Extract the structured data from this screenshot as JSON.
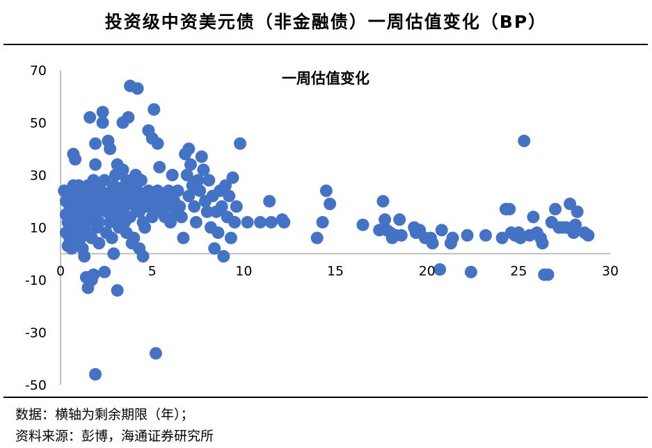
{
  "header": {
    "title": "投资级中资美元债（非金融债）一周估值变化（BP）"
  },
  "footer": {
    "note": "数据：横轴为剩余期限（年）；",
    "source": "资料来源：彭博，海通证券研究所"
  },
  "colors": {
    "marker": "#4472c4",
    "axis": "#bfbfbf",
    "text": "#000000"
  },
  "chart_data": {
    "type": "scatter",
    "title": "一周估值变化",
    "xlabel": "",
    "ylabel": "",
    "xlim": [
      0,
      30
    ],
    "ylim": [
      -50,
      70
    ],
    "xticks": [
      0,
      5,
      10,
      15,
      20,
      25,
      30
    ],
    "yticks": [
      70,
      50,
      30,
      10,
      -10,
      -30,
      -50
    ],
    "grid": false,
    "legend": "none",
    "series": [
      {
        "points": [
          [
            0.2,
            24
          ],
          [
            0.3,
            20
          ],
          [
            0.3,
            15
          ],
          [
            0.3,
            8
          ],
          [
            0.4,
            3
          ],
          [
            0.4,
            12
          ],
          [
            0.5,
            24
          ],
          [
            0.5,
            18
          ],
          [
            0.5,
            6
          ],
          [
            0.6,
            22
          ],
          [
            0.6,
            10
          ],
          [
            0.6,
            2
          ],
          [
            0.7,
            26
          ],
          [
            0.7,
            14
          ],
          [
            0.7,
            38
          ],
          [
            0.8,
            36
          ],
          [
            0.8,
            20
          ],
          [
            0.8,
            16
          ],
          [
            0.9,
            8
          ],
          [
            0.9,
            4
          ],
          [
            1.0,
            22
          ],
          [
            1.0,
            12
          ],
          [
            1.0,
            26
          ],
          [
            1.1,
            18
          ],
          [
            1.1,
            10
          ],
          [
            1.1,
            6
          ],
          [
            1.2,
            24
          ],
          [
            1.2,
            14
          ],
          [
            1.2,
            2
          ],
          [
            1.3,
            20
          ],
          [
            1.3,
            16
          ],
          [
            1.3,
            -1
          ],
          [
            1.4,
            -9
          ],
          [
            1.4,
            22
          ],
          [
            1.4,
            12
          ],
          [
            1.5,
            26
          ],
          [
            1.5,
            8
          ],
          [
            1.5,
            -13
          ],
          [
            1.6,
            24
          ],
          [
            1.6,
            18
          ],
          [
            1.6,
            52
          ],
          [
            1.7,
            -10
          ],
          [
            1.7,
            14
          ],
          [
            1.7,
            6
          ],
          [
            1.8,
            20
          ],
          [
            1.8,
            28
          ],
          [
            1.8,
            -8
          ],
          [
            1.9,
            42
          ],
          [
            1.9,
            34
          ],
          [
            1.9,
            -46
          ],
          [
            2.0,
            16
          ],
          [
            2.0,
            22
          ],
          [
            2.0,
            10
          ],
          [
            2.1,
            26
          ],
          [
            2.1,
            4
          ],
          [
            2.1,
            12
          ],
          [
            2.2,
            18
          ],
          [
            2.2,
            24
          ],
          [
            2.3,
            50
          ],
          [
            2.3,
            54
          ],
          [
            2.4,
            -7
          ],
          [
            2.4,
            20
          ],
          [
            2.4,
            28
          ],
          [
            2.5,
            8
          ],
          [
            2.5,
            16
          ],
          [
            2.6,
            22
          ],
          [
            2.6,
            43
          ],
          [
            2.7,
            40
          ],
          [
            2.7,
            12
          ],
          [
            2.8,
            24
          ],
          [
            2.8,
            6
          ],
          [
            2.8,
            18
          ],
          [
            2.9,
            0
          ],
          [
            2.9,
            26
          ],
          [
            3.0,
            20
          ],
          [
            3.0,
            14
          ],
          [
            3.0,
            30
          ],
          [
            3.1,
            -14
          ],
          [
            3.1,
            34
          ],
          [
            3.2,
            22
          ],
          [
            3.2,
            10
          ],
          [
            3.3,
            16
          ],
          [
            3.3,
            25
          ],
          [
            3.4,
            32
          ],
          [
            3.4,
            50
          ],
          [
            3.5,
            18
          ],
          [
            3.5,
            12
          ],
          [
            3.5,
            24
          ],
          [
            3.6,
            28
          ],
          [
            3.6,
            8
          ],
          [
            3.7,
            52
          ],
          [
            3.7,
            20
          ],
          [
            3.8,
            64
          ],
          [
            3.8,
            14
          ],
          [
            3.9,
            22
          ],
          [
            3.9,
            4
          ],
          [
            4.0,
            26
          ],
          [
            4.0,
            6
          ],
          [
            4.1,
            18
          ],
          [
            4.1,
            30
          ],
          [
            4.2,
            63
          ],
          [
            4.2,
            24
          ],
          [
            4.3,
            16
          ],
          [
            4.3,
            2
          ],
          [
            4.4,
            28
          ],
          [
            4.4,
            20
          ],
          [
            4.5,
            12
          ],
          [
            4.5,
            -1
          ],
          [
            4.6,
            22
          ],
          [
            4.6,
            10
          ],
          [
            4.7,
            18
          ],
          [
            4.8,
            47
          ],
          [
            4.8,
            24
          ],
          [
            4.9,
            20
          ],
          [
            5.0,
            14
          ],
          [
            5.0,
            44
          ],
          [
            5.1,
            22
          ],
          [
            5.1,
            55
          ],
          [
            5.2,
            18
          ],
          [
            5.2,
            -38
          ],
          [
            5.3,
            24
          ],
          [
            5.3,
            42
          ],
          [
            5.4,
            33
          ],
          [
            5.4,
            20
          ],
          [
            5.5,
            16
          ],
          [
            5.6,
            22
          ],
          [
            5.7,
            14
          ],
          [
            5.8,
            18
          ],
          [
            5.9,
            24
          ],
          [
            6.0,
            12
          ],
          [
            6.1,
            30
          ],
          [
            6.2,
            20
          ],
          [
            6.3,
            16
          ],
          [
            6.4,
            24
          ],
          [
            6.5,
            18
          ],
          [
            6.6,
            14
          ],
          [
            6.7,
            6
          ],
          [
            6.8,
            38
          ],
          [
            6.9,
            30
          ],
          [
            7.0,
            40
          ],
          [
            7.0,
            22
          ],
          [
            7.1,
            34
          ],
          [
            7.2,
            26
          ],
          [
            7.3,
            18
          ],
          [
            7.4,
            12
          ],
          [
            7.5,
            28
          ],
          [
            7.6,
            24
          ],
          [
            7.7,
            37
          ],
          [
            7.8,
            32
          ],
          [
            7.9,
            20
          ],
          [
            8.0,
            16
          ],
          [
            8.1,
            28
          ],
          [
            8.2,
            10
          ],
          [
            8.3,
            22
          ],
          [
            8.4,
            2
          ],
          [
            8.5,
            16
          ],
          [
            8.6,
            8
          ],
          [
            8.7,
            24
          ],
          [
            8.8,
            18
          ],
          [
            8.9,
            -1
          ],
          [
            9.0,
            26
          ],
          [
            9.1,
            14
          ],
          [
            9.2,
            22
          ],
          [
            9.3,
            6
          ],
          [
            9.4,
            29
          ],
          [
            9.5,
            12
          ],
          [
            9.6,
            18
          ],
          [
            9.8,
            42
          ],
          [
            10.2,
            12
          ],
          [
            10.9,
            12
          ],
          [
            11.4,
            20
          ],
          [
            11.5,
            12
          ],
          [
            12.1,
            13
          ],
          [
            12.2,
            12
          ],
          [
            14.0,
            6
          ],
          [
            14.3,
            12
          ],
          [
            14.5,
            24
          ],
          [
            14.7,
            19
          ],
          [
            16.5,
            11
          ],
          [
            17.4,
            9
          ],
          [
            17.6,
            20
          ],
          [
            17.7,
            13
          ],
          [
            17.8,
            9
          ],
          [
            18.0,
            8
          ],
          [
            18.1,
            6
          ],
          [
            18.3,
            7
          ],
          [
            18.5,
            13
          ],
          [
            18.6,
            7
          ],
          [
            19.3,
            10
          ],
          [
            19.4,
            8
          ],
          [
            19.6,
            9
          ],
          [
            19.9,
            6
          ],
          [
            20.2,
            6
          ],
          [
            20.3,
            4
          ],
          [
            20.7,
            -6
          ],
          [
            20.8,
            9
          ],
          [
            21.3,
            4
          ],
          [
            21.4,
            6
          ],
          [
            22.2,
            7
          ],
          [
            22.4,
            -7
          ],
          [
            23.2,
            7
          ],
          [
            24.1,
            6
          ],
          [
            24.3,
            17
          ],
          [
            24.5,
            17
          ],
          [
            24.6,
            8
          ],
          [
            24.8,
            7
          ],
          [
            25.0,
            8
          ],
          [
            25.1,
            6
          ],
          [
            25.3,
            43
          ],
          [
            25.6,
            7
          ],
          [
            25.8,
            14
          ],
          [
            26.0,
            8
          ],
          [
            26.2,
            6
          ],
          [
            26.3,
            4
          ],
          [
            26.4,
            -8
          ],
          [
            26.6,
            -8
          ],
          [
            26.8,
            12
          ],
          [
            27.0,
            17
          ],
          [
            27.2,
            10
          ],
          [
            27.4,
            10
          ],
          [
            27.6,
            10
          ],
          [
            27.8,
            19
          ],
          [
            28.0,
            8
          ],
          [
            28.1,
            11
          ],
          [
            28.2,
            16
          ],
          [
            28.6,
            8
          ],
          [
            28.8,
            7
          ]
        ]
      }
    ]
  }
}
